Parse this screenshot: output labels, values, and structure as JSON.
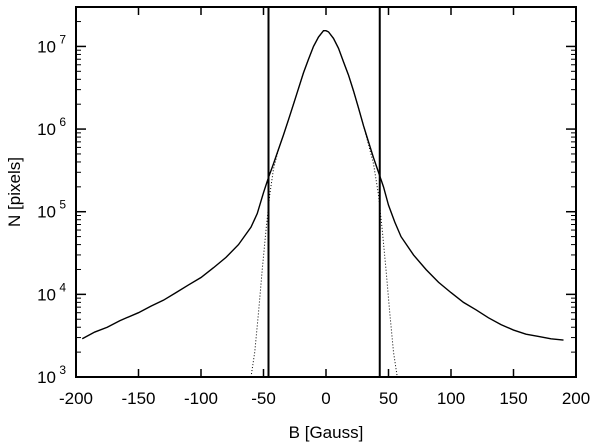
{
  "chart_data": {
    "type": "line",
    "title": "",
    "xlabel": "B [Gauss]",
    "ylabel": "N [pixels]",
    "xlim": [
      -200,
      200
    ],
    "ylim": [
      1000,
      30000000
    ],
    "yscale": "log",
    "grid": false,
    "x_ticks": [
      -200,
      -150,
      -100,
      -50,
      0,
      50,
      100,
      150,
      200
    ],
    "x_tick_labels": [
      "-200",
      "-150",
      "-100",
      "-50",
      "0",
      "50",
      "100",
      "150",
      "200"
    ],
    "y_ticks": [
      1000,
      10000,
      100000,
      1000000,
      10000000
    ],
    "y_tick_labels": [
      {
        "base": "10",
        "exp": "3"
      },
      {
        "base": "10",
        "exp": "4"
      },
      {
        "base": "10",
        "exp": "5"
      },
      {
        "base": "10",
        "exp": "6"
      },
      {
        "base": "10",
        "exp": "7"
      }
    ],
    "series": [
      {
        "style": "solid",
        "x": [
          -195,
          -185,
          -175,
          -165,
          -150,
          -140,
          -130,
          -120,
          -110,
          -100,
          -90,
          -80,
          -70,
          -60,
          -55,
          -50,
          -46,
          -42,
          -38,
          -34,
          -30,
          -26,
          -22,
          -18,
          -14,
          -10,
          -6,
          -2,
          0,
          2,
          6,
          10,
          14,
          18,
          22,
          26,
          30,
          34,
          38,
          42,
          46,
          50,
          55,
          60,
          70,
          80,
          90,
          100,
          110,
          120,
          130,
          140,
          150,
          160,
          170,
          180,
          190
        ],
        "y": [
          2900,
          3500,
          4000,
          4800,
          6000,
          7200,
          8500,
          10500,
          13000,
          16000,
          21000,
          28000,
          40000,
          65000,
          95000,
          170000,
          260000,
          380000,
          570000,
          850000,
          1300000,
          2000000,
          3100000,
          4800000,
          7000000,
          10000000,
          13000000,
          15500000,
          15500000,
          15000000,
          12500000,
          9500000,
          6500000,
          4500000,
          2900000,
          1800000,
          1100000,
          700000,
          450000,
          300000,
          200000,
          120000,
          75000,
          50000,
          30000,
          20000,
          14000,
          10500,
          8000,
          6500,
          5200,
          4300,
          3700,
          3300,
          3100,
          2900,
          2800
        ]
      },
      {
        "style": "dotted",
        "x": [
          -60,
          -57,
          -54,
          -51,
          -48,
          -45,
          -42,
          -38,
          -34,
          -30,
          -26,
          -22,
          -18,
          -14,
          -10,
          -6,
          -2,
          0,
          2,
          6,
          10,
          14,
          18,
          22,
          26,
          30,
          34,
          38,
          42,
          45,
          48,
          51,
          54,
          57
        ],
        "y": [
          1000,
          2000,
          6000,
          20000,
          60000,
          160000,
          330000,
          570000,
          850000,
          1300000,
          2000000,
          3100000,
          4800000,
          7000000,
          10000000,
          13000000,
          15500000,
          15500000,
          15000000,
          12500000,
          9500000,
          6500000,
          4500000,
          2900000,
          1800000,
          1100000,
          650000,
          380000,
          160000,
          60000,
          20000,
          6000,
          2000,
          1000
        ]
      }
    ],
    "vertical_lines": [
      -46,
      43
    ]
  }
}
